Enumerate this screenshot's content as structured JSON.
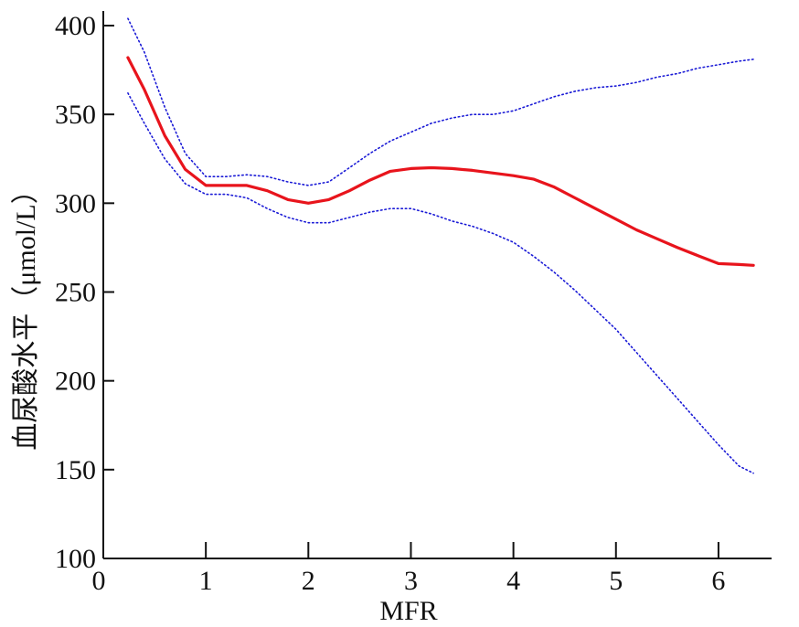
{
  "chart_data": {
    "type": "line",
    "title": "",
    "xlabel": "MFR",
    "ylabel": "血尿酸水平（μmol/L）",
    "xlim": [
      0,
      6.5
    ],
    "ylim": [
      100,
      410
    ],
    "x_ticks": [
      0,
      1,
      2,
      3,
      4,
      5,
      6
    ],
    "y_ticks": [
      100,
      150,
      200,
      250,
      300,
      350,
      400
    ],
    "x_tick_labels": [
      "0",
      "1",
      "2",
      "3",
      "4",
      "5",
      "6"
    ],
    "y_tick_labels": [
      "100",
      "150",
      "200",
      "250",
      "300",
      "350",
      "400"
    ],
    "grid": false,
    "legend": "none",
    "series": [
      {
        "role": "fit",
        "style": "solid",
        "color": "#e8141c",
        "x": [
          0.24,
          0.4,
          0.6,
          0.8,
          1.0,
          1.2,
          1.4,
          1.6,
          1.8,
          2.0,
          2.2,
          2.4,
          2.6,
          2.8,
          3.0,
          3.2,
          3.4,
          3.6,
          3.8,
          4.0,
          4.2,
          4.4,
          4.6,
          4.8,
          5.0,
          5.2,
          5.4,
          5.6,
          5.8,
          6.0,
          6.2,
          6.34
        ],
        "y": [
          382,
          364,
          338,
          319,
          310,
          310,
          310,
          307,
          302,
          300,
          302,
          307,
          313,
          318,
          319.5,
          320,
          319.5,
          318.5,
          317,
          315.5,
          313.5,
          309,
          303,
          297,
          291,
          285,
          280,
          275,
          270.5,
          266,
          265.5,
          265
        ]
      },
      {
        "role": "upper-ci",
        "style": "dotted",
        "color": "#1a1ad6",
        "x": [
          0.24,
          0.4,
          0.6,
          0.8,
          1.0,
          1.2,
          1.4,
          1.6,
          1.8,
          2.0,
          2.2,
          2.4,
          2.6,
          2.8,
          3.0,
          3.2,
          3.4,
          3.6,
          3.8,
          4.0,
          4.2,
          4.4,
          4.6,
          4.8,
          5.0,
          5.2,
          5.4,
          5.6,
          5.8,
          6.0,
          6.2,
          6.34
        ],
        "y": [
          404,
          385,
          354,
          328,
          315,
          315,
          316,
          315,
          312,
          310,
          312,
          320,
          328,
          335,
          340,
          345,
          348,
          350,
          350,
          352,
          356,
          360,
          363,
          365,
          366,
          368,
          371,
          373,
          376,
          378,
          380,
          381
        ]
      },
      {
        "role": "lower-ci",
        "style": "dotted",
        "color": "#1a1ad6",
        "x": [
          0.24,
          0.4,
          0.6,
          0.8,
          1.0,
          1.2,
          1.4,
          1.6,
          1.8,
          2.0,
          2.2,
          2.4,
          2.6,
          2.8,
          3.0,
          3.2,
          3.4,
          3.6,
          3.8,
          4.0,
          4.2,
          4.4,
          4.6,
          4.8,
          5.0,
          5.2,
          5.4,
          5.6,
          5.8,
          6.0,
          6.2,
          6.34
        ],
        "y": [
          362,
          345,
          325,
          311,
          305,
          305,
          303,
          297,
          292,
          289,
          289,
          292,
          295,
          297,
          297,
          294,
          290,
          287,
          283,
          278,
          270,
          261,
          251,
          240,
          229,
          216,
          203,
          190,
          177,
          164,
          152,
          148
        ]
      }
    ]
  }
}
